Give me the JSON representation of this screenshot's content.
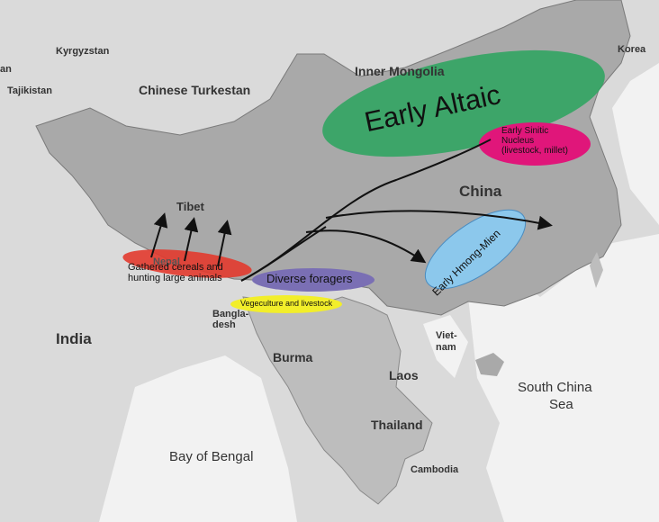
{
  "regions": {
    "kyrgyzstan": "Kyrgyzstan",
    "tajikistan": "Tajikistan",
    "an": "an",
    "korea": "Korea",
    "chinese_turkestan": "Chinese Turkestan",
    "inner_mongolia": "Inner Mongolia",
    "china": "China",
    "tibet": "Tibet",
    "nepal": "Nepal",
    "india": "India",
    "bangla": "Bangla-",
    "desh": "desh",
    "burma": "Burma",
    "laos": "Laos",
    "viet": "Viet-",
    "nam": "nam",
    "thailand": "Thailand",
    "cambodia": "Cambodia",
    "bay_of_bengal": "Bay of Bengal",
    "south_china": "South China",
    "sea": "Sea"
  },
  "overlays": {
    "early_altaic": "Early Altaic",
    "early_sinitic": [
      "Early Sinitic",
      "Nucleus",
      "(livestock, millet)"
    ],
    "early_hmong_mien": "Early Hmong-Mien",
    "gathered": [
      "Gathered cereals and",
      "hunting large animals"
    ],
    "diverse_foragers": "Diverse foragers",
    "vegeculture": "Vegeculture and livestock"
  },
  "colors": {
    "water": "#f2f2f2",
    "neighbor_land": "#dadada",
    "china_land": "#a9a9a9",
    "early_altaic": "#2aa55e",
    "early_sinitic": "#e0167a",
    "early_hmong_mien": "#8cc8ec",
    "gathered": "#e23a2e",
    "diverse_foragers": "#7a6fb4",
    "vegeculture": "#f2ee2a"
  }
}
